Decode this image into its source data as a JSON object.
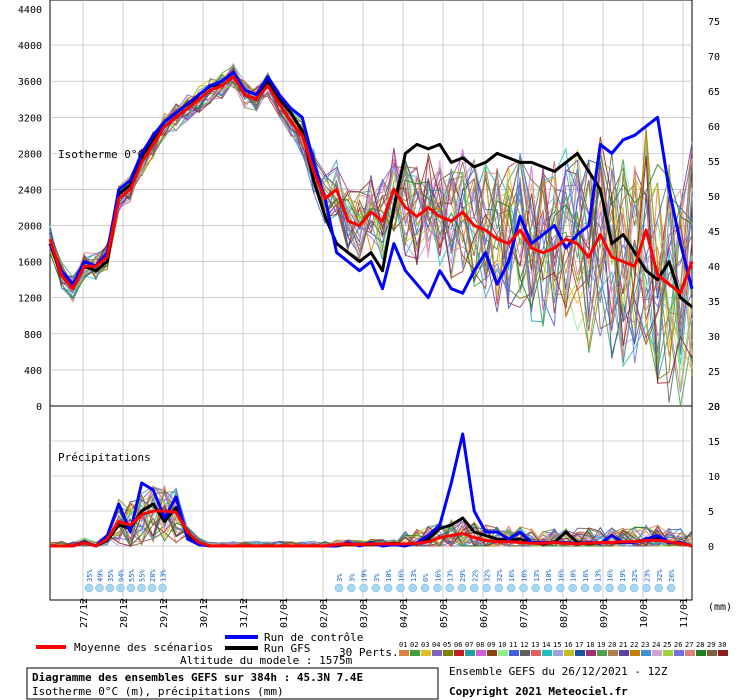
{
  "chart_data": [
    {
      "type": "line",
      "panel": "upper",
      "label": "Isotherme 0°C",
      "x_ticks": [
        "27/12",
        "28/12",
        "29/12",
        "30/12",
        "31/12",
        "01/01",
        "02/01",
        "03/01",
        "04/01",
        "05/01",
        "06/01",
        "07/01",
        "08/01",
        "09/01",
        "10/01",
        "11/01"
      ],
      "x_unit": "(mm)",
      "y_left_ticks": [
        "4400",
        "4000",
        "3600",
        "3200",
        "2800",
        "2400",
        "2000",
        "1600",
        "1200",
        "800",
        "400",
        "0"
      ],
      "y_right_ticks": [
        "75",
        "70",
        "65",
        "60",
        "55",
        "50",
        "45",
        "40",
        "35",
        "30",
        "25",
        "20"
      ],
      "ylim": [
        0,
        4500
      ],
      "grid": true,
      "series": [
        {
          "name": "Moyenne des scénarios",
          "color": "#ff0000",
          "values": [
            1850,
            1450,
            1300,
            1550,
            1550,
            1650,
            2300,
            2400,
            2700,
            2900,
            3100,
            3200,
            3300,
            3400,
            3500,
            3550,
            3650,
            3450,
            3400,
            3550,
            3350,
            3150,
            3000,
            2600,
            2300,
            2400,
            2050,
            2000,
            2150,
            2050,
            2400,
            2200,
            2100,
            2200,
            2100,
            2050,
            2150,
            2000,
            1950,
            1850,
            1800,
            1950,
            1750,
            1700,
            1750,
            1850,
            1800,
            1650,
            1900,
            1650,
            1600,
            1550,
            1950,
            1450,
            1350,
            1250,
            1600
          ]
        },
        {
          "name": "Run de contrôle",
          "color": "#0000ff",
          "values": [
            1800,
            1500,
            1350,
            1600,
            1550,
            1700,
            2400,
            2500,
            2800,
            3000,
            3150,
            3250,
            3350,
            3450,
            3550,
            3600,
            3700,
            3500,
            3450,
            3650,
            3450,
            3300,
            3200,
            2700,
            2300,
            1700,
            1600,
            1500,
            1600,
            1300,
            1800,
            1500,
            1350,
            1200,
            1500,
            1300,
            1250,
            1500,
            1700,
            1350,
            1600,
            2100,
            1800,
            1900,
            2000,
            1750,
            1900,
            2000,
            2900,
            2800,
            2950,
            3000,
            3100,
            3200,
            2400,
            1800,
            1300
          ]
        },
        {
          "name": "Run GFS",
          "color": "#000000",
          "values": [
            1800,
            1450,
            1300,
            1550,
            1500,
            1600,
            2350,
            2450,
            2750,
            2950,
            3100,
            3200,
            3300,
            3450,
            3550,
            3550,
            3650,
            3450,
            3400,
            3600,
            3400,
            3250,
            3050,
            2500,
            2100,
            1800,
            1700,
            1600,
            1700,
            1500,
            2200,
            2800,
            2900,
            2850,
            2900,
            2700,
            2750,
            2650,
            2700,
            2800,
            2750,
            2700,
            2700,
            2650,
            2600,
            2700,
            2800,
            2600,
            2400,
            1800,
            1900,
            1700,
            1500,
            1400,
            1600,
            1200,
            1100
          ]
        }
      ]
    },
    {
      "type": "line",
      "panel": "lower",
      "label": "Précipitations",
      "y_right_ticks": [
        "20",
        "15",
        "10",
        "5",
        "0"
      ],
      "ylim": [
        0,
        20
      ],
      "series": [
        {
          "name": "Moyenne des scénarios",
          "color": "#ff0000",
          "values": [
            0,
            0,
            0,
            0.5,
            0,
            1,
            3.5,
            3,
            4.5,
            5,
            5,
            4.8,
            2,
            0.5,
            0,
            0,
            0,
            0,
            0,
            0,
            0,
            0,
            0,
            0,
            0,
            0.2,
            0.3,
            0.2,
            0.3,
            0.3,
            0.3,
            0.3,
            0.4,
            0.6,
            1.2,
            1.5,
            1.8,
            1.2,
            0.8,
            0.6,
            0.6,
            0.5,
            0.4,
            0.4,
            0.5,
            0.4,
            0.3,
            0.4,
            0.5,
            0.5,
            0.6,
            0.6,
            0.8,
            0.8,
            0.6,
            0.4,
            0
          ]
        },
        {
          "name": "Run de contrôle",
          "color": "#0000ff",
          "values": [
            0,
            0,
            0,
            0.6,
            0,
            1.5,
            6,
            2,
            9,
            8,
            4,
            7,
            1,
            0.2,
            0,
            0,
            0,
            0,
            0,
            0,
            0,
            0,
            0,
            0,
            0,
            0,
            0.5,
            0,
            0.5,
            0,
            0.2,
            0,
            0.5,
            1.5,
            3,
            9,
            16,
            5,
            2,
            2,
            1,
            2,
            0.5,
            0.5,
            0.5,
            0.5,
            0.3,
            0.5,
            0.4,
            1.5,
            0.5,
            0.5,
            1,
            1.5,
            0.5,
            0.5,
            0
          ]
        },
        {
          "name": "Run GFS",
          "color": "#000000",
          "values": [
            0,
            0,
            0,
            0.5,
            0,
            0.8,
            3,
            2.5,
            5,
            6,
            3.5,
            5.5,
            1.5,
            0.3,
            0,
            0,
            0,
            0,
            0,
            0,
            0,
            0,
            0,
            0,
            0,
            0,
            0.3,
            0.1,
            0.3,
            0.2,
            0.4,
            0.2,
            0.4,
            1,
            2.5,
            3,
            4,
            2,
            1.5,
            1,
            0.8,
            1,
            0.5,
            0.3,
            0.5,
            2,
            0.5,
            0.3,
            0.5,
            0.5,
            0.5,
            0.6,
            0.8,
            1,
            0.5,
            0.5,
            0
          ]
        }
      ],
      "prob_labels": [
        "35%",
        "49%",
        "35%",
        "94%",
        "55%",
        "55%",
        "28%",
        "13%"
      ],
      "prob_labels_right": [
        "3%",
        "3%",
        "19%",
        "3%",
        "10%",
        "16%",
        "13%",
        "6%",
        "16%",
        "13%",
        "29%",
        "22%",
        "32%",
        "32%",
        "16%",
        "16%",
        "13%",
        "10%",
        "16%",
        "10%",
        "16%",
        "13%",
        "16%",
        "19%",
        "32%",
        "23%",
        "32%",
        "26%"
      ]
    }
  ],
  "legend": {
    "mean": "Moyenne des scénarios",
    "control": "Run de contrôle",
    "gfs": "Run GFS",
    "perts": "30 Perts.",
    "pert_numbers": [
      "01",
      "02",
      "03",
      "04",
      "05",
      "06",
      "07",
      "08",
      "09",
      "10",
      "11",
      "12",
      "13",
      "14",
      "15",
      "16",
      "17",
      "18",
      "19",
      "20",
      "21",
      "22",
      "23",
      "24",
      "25",
      "26",
      "27",
      "28",
      "29",
      "30"
    ],
    "pert_colors": [
      "#e08040",
      "#40a040",
      "#e0c020",
      "#8060c0",
      "#808000",
      "#c02020",
      "#20a0a0",
      "#d060d0",
      "#8b4513",
      "#90ee90",
      "#4060e0",
      "#606060",
      "#e06060",
      "#20c0c0",
      "#a0a0e0",
      "#c0c020",
      "#2050a0",
      "#a03070",
      "#50a050",
      "#b08050",
      "#6040a0",
      "#c08000",
      "#4090d0",
      "#d0a0d0",
      "#a0d040",
      "#7070e0",
      "#e08080",
      "#208020",
      "#806040",
      "#902020"
    ],
    "altitude": "Altitude du modele : 1575m"
  },
  "footer": {
    "title": "Diagramme des ensembles GEFS sur 384h : 45.3N 7.4E",
    "subtitle": "Isotherme 0°C (m), précipitations (mm)",
    "run": "Ensemble GEFS du 26/12/2021 - 12Z",
    "copyright": "Copyright 2021 Meteociel.fr"
  }
}
